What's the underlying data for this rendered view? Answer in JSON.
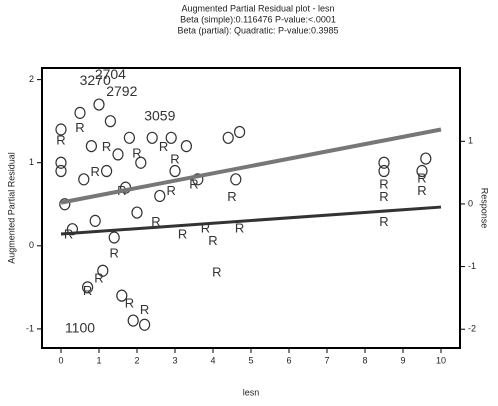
{
  "chart_data": {
    "type": "scatter",
    "title": "Augmented Partial Residual plot - lesn",
    "subtitle": [
      "Beta (simple):0.116476 P-value:<.0001",
      "Beta (partial):  Quadratic: P-value:0.3985"
    ],
    "x_label": "lesn",
    "y_label": "Augmented Partial Residual",
    "y2_label": "Response",
    "xlim": [
      -0.5,
      10.5
    ],
    "ylim": [
      -1.23,
      2.14
    ],
    "y2lim": [
      -2.3,
      2.17
    ],
    "xticks": [
      0,
      1,
      2,
      3,
      4,
      5,
      6,
      7,
      8,
      9,
      10
    ],
    "yticks": [
      -1,
      0,
      1,
      2
    ],
    "y2ticks": [
      -2,
      -1,
      0,
      1
    ],
    "series": [
      {
        "type": "scatter",
        "marker": "circle",
        "color": "#333333",
        "x": [
          0,
          0,
          0,
          0.1,
          0.3,
          0.5,
          0.6,
          0.7,
          0.8,
          0.9,
          1.0,
          1.1,
          1.2,
          1.3,
          1.4,
          1.5,
          1.6,
          1.7,
          1.8,
          1.9,
          2.0,
          2.1,
          2.2,
          2.4,
          2.6,
          2.9,
          3.0,
          3.3,
          3.6,
          4.4,
          4.6,
          4.7,
          8.5,
          8.5,
          9.5,
          9.6
        ],
        "values": [
          0.9,
          1.0,
          1.4,
          0.5,
          0.2,
          1.6,
          0.8,
          -0.5,
          1.2,
          0.3,
          1.7,
          -0.3,
          0.9,
          1.5,
          0.1,
          1.1,
          -0.6,
          0.7,
          1.3,
          -0.9,
          0.4,
          1.0,
          -0.95,
          1.3,
          0.6,
          1.3,
          0.9,
          1.2,
          0.8,
          1.3,
          0.8,
          1.37,
          1.0,
          0.9,
          0.9,
          1.05
        ]
      },
      {
        "type": "scatter",
        "marker": "R",
        "axis": "y2",
        "color": "#333333",
        "x": [
          0,
          0.2,
          0.5,
          0.7,
          0.9,
          1.0,
          1.2,
          1.4,
          1.6,
          1.8,
          2.0,
          2.2,
          2.5,
          2.7,
          2.9,
          3.0,
          3.2,
          3.5,
          3.8,
          4.0,
          4.1,
          4.5,
          4.7,
          8.5,
          8.5,
          8.5,
          9.5,
          9.5
        ],
        "values": [
          1.0,
          -0.5,
          1.2,
          -1.4,
          0.5,
          -1.2,
          0.9,
          -0.8,
          0.2,
          -1.6,
          0.8,
          -1.7,
          -0.3,
          0.9,
          0.2,
          0.7,
          -0.5,
          0.3,
          -0.4,
          -0.6,
          -1.1,
          0.1,
          -0.4,
          0.3,
          0.1,
          -0.3,
          0.4,
          0.2
        ]
      },
      {
        "type": "line",
        "color": "#777777",
        "x": [
          0,
          10
        ],
        "values": [
          0.52,
          1.4
        ]
      },
      {
        "type": "line",
        "axis": "y2",
        "color": "#333333",
        "x": [
          0,
          10
        ],
        "values": [
          -0.48,
          -0.05
        ]
      }
    ],
    "annotations": [
      {
        "text": "2704",
        "x": 1.3,
        "y": 2.05
      },
      {
        "text": "3270",
        "x": 0.9,
        "y": 1.98
      },
      {
        "text": "2792",
        "x": 1.6,
        "y": 1.85
      },
      {
        "text": "3059",
        "x": 2.6,
        "y": 1.55
      },
      {
        "text": "1100",
        "x": 0.5,
        "y": -1.0
      }
    ]
  }
}
